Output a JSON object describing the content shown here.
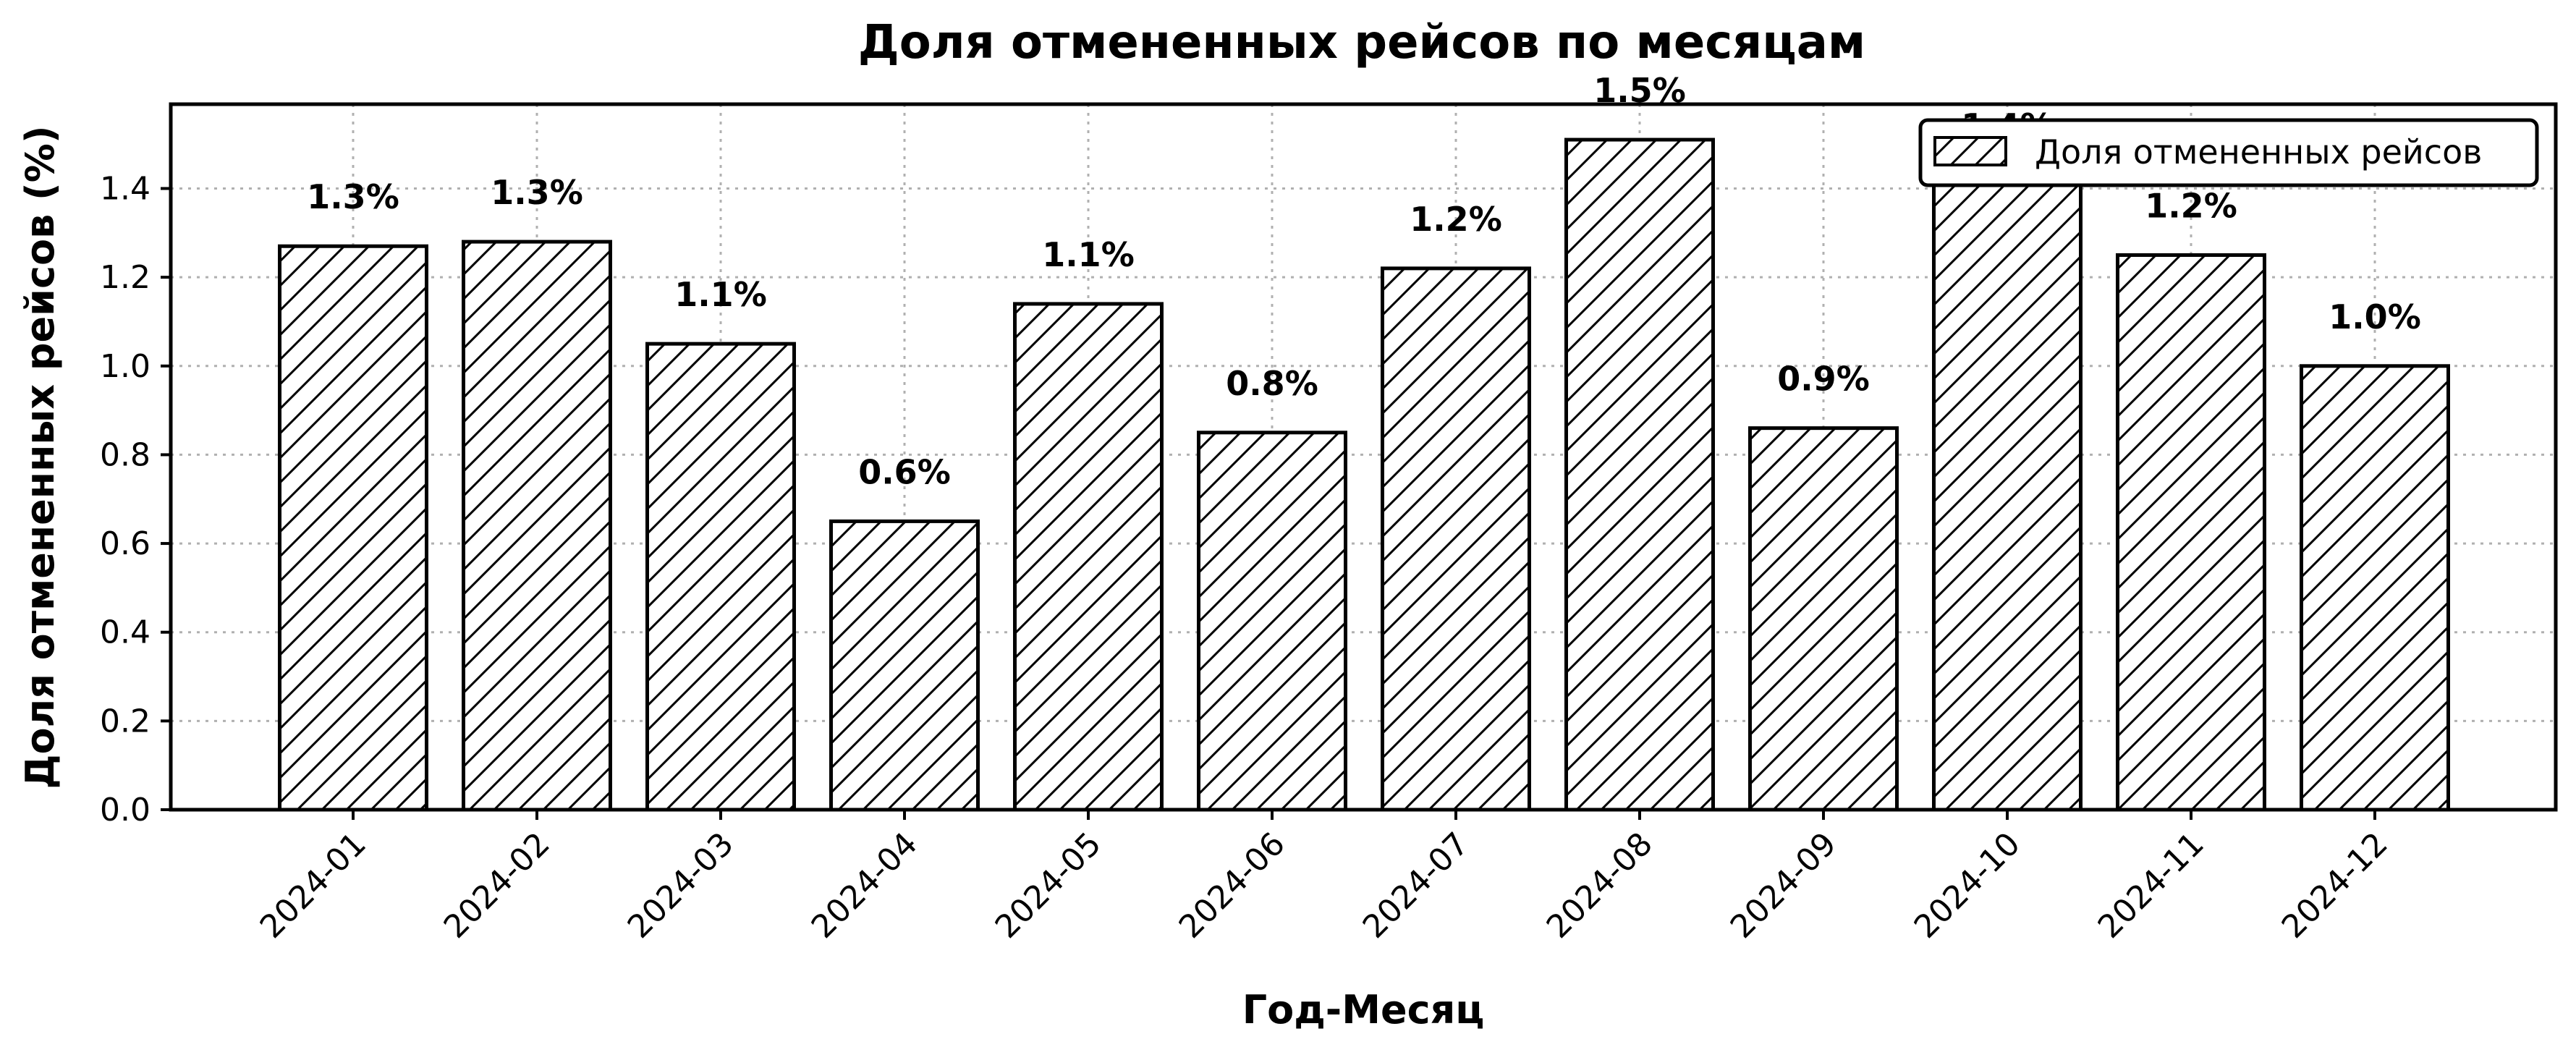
{
  "chart_data": {
    "type": "bar",
    "title": "Доля отмененных рейсов по месяцам",
    "xlabel": "Год-Месяц",
    "ylabel": "Доля отмененных рейсов (%)",
    "categories": [
      "2024-01",
      "2024-02",
      "2024-03",
      "2024-04",
      "2024-05",
      "2024-06",
      "2024-07",
      "2024-08",
      "2024-09",
      "2024-10",
      "2024-11",
      "2024-12"
    ],
    "series": [
      {
        "name": "Доля отмененных рейсов",
        "values": [
          1.27,
          1.28,
          1.05,
          0.65,
          1.14,
          0.85,
          1.22,
          1.51,
          0.86,
          1.43,
          1.25,
          1.0
        ],
        "labels": [
          "1.3%",
          "1.3%",
          "1.1%",
          "0.6%",
          "1.1%",
          "0.8%",
          "1.2%",
          "1.5%",
          "0.9%",
          "1.4%",
          "1.2%",
          "1.0%"
        ]
      }
    ],
    "ylim": [
      0,
      1.59
    ],
    "yticks": [
      0.0,
      0.2,
      0.4,
      0.6,
      0.8,
      1.0,
      1.2,
      1.4
    ],
    "ytick_labels": [
      "0.0",
      "0.2",
      "0.4",
      "0.6",
      "0.8",
      "1.0",
      "1.2",
      "1.4"
    ],
    "grid": true,
    "legend": "top-right",
    "hatch": "diagonal",
    "bar_color": "#ffffff",
    "edge_color": "#000000"
  }
}
